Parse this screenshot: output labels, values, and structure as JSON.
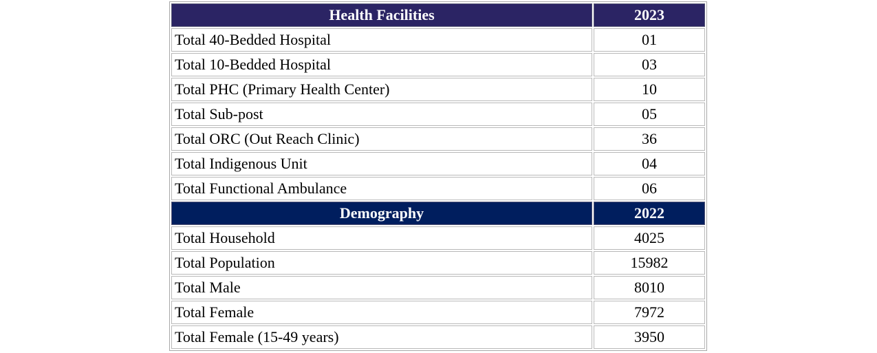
{
  "health": {
    "header_label": "Health Facilities",
    "header_year": "2023",
    "rows": [
      {
        "label": "Total 40-Bedded Hospital",
        "value": "01"
      },
      {
        "label": "Total 10-Bedded Hospital",
        "value": "03"
      },
      {
        "label": "Total PHC (Primary Health Center)",
        "value": "10"
      },
      {
        "label": "Total Sub-post",
        "value": "05"
      },
      {
        "label": "Total ORC (Out Reach Clinic)",
        "value": "36"
      },
      {
        "label": "Total Indigenous Unit",
        "value": "04"
      },
      {
        "label": "Total Functional Ambulance",
        "value": "06"
      }
    ]
  },
  "demography": {
    "header_label": "Demography",
    "header_year": "2022",
    "rows": [
      {
        "label": "Total Household",
        "value": "4025"
      },
      {
        "label": "Total Population",
        "value": "15982"
      },
      {
        "label": "Total Male",
        "value": "8010"
      },
      {
        "label": "Total Female",
        "value": "7972"
      },
      {
        "label": "Total Female (15-49 years)",
        "value": "3950"
      }
    ]
  }
}
